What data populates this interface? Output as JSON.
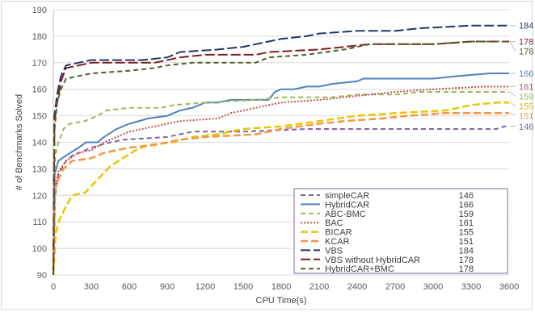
{
  "chart_data": {
    "type": "line",
    "xlabel": "CPU Time(s)",
    "ylabel": "# of Benchmarks Solved",
    "xlim": [
      0,
      3600
    ],
    "ylim": [
      90,
      190
    ],
    "xticks": [
      0,
      300,
      600,
      900,
      1200,
      1500,
      1800,
      2100,
      2400,
      2700,
      3000,
      3300,
      3600
    ],
    "yticks": [
      90,
      100,
      110,
      120,
      130,
      140,
      150,
      160,
      170,
      180,
      190
    ],
    "grid": "horizontal",
    "legend_position": "bottom-right",
    "series": [
      {
        "name": "simpleCAR",
        "final": 146,
        "color": "#8064a2",
        "dash": "6,4",
        "width": 2,
        "end_label_color": "#8064a2",
        "points": [
          [
            0,
            90
          ],
          [
            15,
            120
          ],
          [
            40,
            128
          ],
          [
            100,
            133
          ],
          [
            150,
            135
          ],
          [
            200,
            136
          ],
          [
            300,
            138
          ],
          [
            450,
            140
          ],
          [
            560,
            141
          ],
          [
            900,
            142
          ],
          [
            1100,
            144
          ],
          [
            1500,
            144
          ],
          [
            2000,
            145
          ],
          [
            2400,
            145
          ],
          [
            3000,
            145
          ],
          [
            3500,
            145
          ],
          [
            3560,
            146
          ],
          [
            3600,
            146
          ]
        ]
      },
      {
        "name": "HybridCAR",
        "final": 166,
        "color": "#4f81bd",
        "dash": "",
        "width": 2,
        "end_label_color": "#4f81bd",
        "points": [
          [
            0,
            90
          ],
          [
            10,
            128
          ],
          [
            40,
            133
          ],
          [
            100,
            135
          ],
          [
            200,
            138
          ],
          [
            260,
            140
          ],
          [
            350,
            140
          ],
          [
            400,
            142
          ],
          [
            500,
            145
          ],
          [
            600,
            147
          ],
          [
            750,
            149
          ],
          [
            900,
            150
          ],
          [
            1000,
            152
          ],
          [
            1100,
            153
          ],
          [
            1200,
            155
          ],
          [
            1300,
            155
          ],
          [
            1400,
            156
          ],
          [
            1700,
            156
          ],
          [
            1750,
            159
          ],
          [
            1800,
            160
          ],
          [
            1900,
            160
          ],
          [
            2000,
            161
          ],
          [
            2100,
            161
          ],
          [
            2200,
            162
          ],
          [
            2400,
            163
          ],
          [
            2450,
            164
          ],
          [
            2700,
            164
          ],
          [
            3000,
            164
          ],
          [
            3200,
            165
          ],
          [
            3450,
            166
          ],
          [
            3600,
            166
          ]
        ]
      },
      {
        "name": "ABC-BMC",
        "final": 159,
        "color": "#9bbb59",
        "dash": "6,4",
        "width": 2,
        "end_label_color": "#9bbb59",
        "points": [
          [
            0,
            90
          ],
          [
            15,
            135
          ],
          [
            40,
            140
          ],
          [
            80,
            145
          ],
          [
            130,
            147
          ],
          [
            250,
            148
          ],
          [
            350,
            150
          ],
          [
            420,
            152
          ],
          [
            600,
            153
          ],
          [
            850,
            153
          ],
          [
            950,
            154
          ],
          [
            1200,
            155
          ],
          [
            1600,
            156
          ],
          [
            1800,
            157
          ],
          [
            2200,
            157
          ],
          [
            2400,
            158
          ],
          [
            2700,
            158
          ],
          [
            2900,
            159
          ],
          [
            3600,
            159
          ]
        ]
      },
      {
        "name": "BAC",
        "final": 161,
        "color": "#c0504d",
        "dash": "2,2",
        "width": 2,
        "end_label_color": "#c0504d",
        "points": [
          [
            0,
            90
          ],
          [
            12,
            123
          ],
          [
            40,
            129
          ],
          [
            100,
            133
          ],
          [
            200,
            136
          ],
          [
            300,
            137
          ],
          [
            400,
            140
          ],
          [
            500,
            142
          ],
          [
            600,
            144
          ],
          [
            800,
            146
          ],
          [
            1000,
            148
          ],
          [
            1300,
            149
          ],
          [
            1400,
            151
          ],
          [
            1600,
            153
          ],
          [
            1800,
            155
          ],
          [
            2100,
            156
          ],
          [
            2300,
            157
          ],
          [
            2500,
            158
          ],
          [
            2700,
            159
          ],
          [
            3000,
            160
          ],
          [
            3400,
            161
          ],
          [
            3600,
            161
          ]
        ]
      },
      {
        "name": "BICAR",
        "final": 155,
        "color": "#e5c800",
        "dash": "9,4",
        "width": 2.5,
        "end_label_color": "#d4b800",
        "points": [
          [
            0,
            90
          ],
          [
            20,
            106
          ],
          [
            50,
            111
          ],
          [
            100,
            116
          ],
          [
            150,
            120
          ],
          [
            250,
            121
          ],
          [
            350,
            126
          ],
          [
            450,
            131
          ],
          [
            550,
            134
          ],
          [
            650,
            137
          ],
          [
            750,
            139
          ],
          [
            950,
            140
          ],
          [
            1100,
            142
          ],
          [
            1300,
            143
          ],
          [
            1500,
            145
          ],
          [
            1800,
            146
          ],
          [
            2100,
            148
          ],
          [
            2400,
            150
          ],
          [
            2700,
            151
          ],
          [
            3100,
            152
          ],
          [
            3300,
            154
          ],
          [
            3500,
            155
          ],
          [
            3600,
            155
          ]
        ]
      },
      {
        "name": "KCAR",
        "final": 151,
        "color": "#f79646",
        "dash": "9,4",
        "width": 2.5,
        "end_label_color": "#f79646",
        "points": [
          [
            0,
            90
          ],
          [
            12,
            122
          ],
          [
            40,
            126
          ],
          [
            80,
            130
          ],
          [
            150,
            133
          ],
          [
            300,
            134
          ],
          [
            400,
            136
          ],
          [
            600,
            138
          ],
          [
            800,
            139
          ],
          [
            1000,
            141
          ],
          [
            1200,
            142
          ],
          [
            1600,
            143
          ],
          [
            1800,
            145
          ],
          [
            2100,
            147
          ],
          [
            2300,
            148
          ],
          [
            2600,
            149
          ],
          [
            2800,
            150
          ],
          [
            3100,
            151
          ],
          [
            3600,
            151
          ]
        ]
      },
      {
        "name": "VBS",
        "final": 184,
        "color": "#1f3864",
        "dash": "12,4",
        "width": 2,
        "end_label_color": "#1f3864",
        "points": [
          [
            0,
            90
          ],
          [
            8,
            150
          ],
          [
            30,
            158
          ],
          [
            60,
            165
          ],
          [
            100,
            169
          ],
          [
            200,
            170
          ],
          [
            300,
            171
          ],
          [
            700,
            171
          ],
          [
            900,
            172
          ],
          [
            1000,
            174
          ],
          [
            1300,
            175
          ],
          [
            1500,
            176
          ],
          [
            1700,
            178
          ],
          [
            1800,
            179
          ],
          [
            2000,
            180
          ],
          [
            2100,
            181
          ],
          [
            2400,
            182
          ],
          [
            2700,
            182
          ],
          [
            2900,
            183
          ],
          [
            3300,
            184
          ],
          [
            3600,
            184
          ]
        ]
      },
      {
        "name": "VBS without HybridCAR",
        "final": 178,
        "color": "#7f1f1f",
        "dash": "12,4",
        "width": 2,
        "end_label_color": "#7f1f1f",
        "points": [
          [
            0,
            90
          ],
          [
            8,
            148
          ],
          [
            30,
            155
          ],
          [
            60,
            163
          ],
          [
            100,
            168
          ],
          [
            200,
            169
          ],
          [
            300,
            170
          ],
          [
            800,
            170
          ],
          [
            900,
            171
          ],
          [
            1000,
            172
          ],
          [
            1200,
            173
          ],
          [
            1600,
            173
          ],
          [
            1700,
            174
          ],
          [
            2100,
            175
          ],
          [
            2300,
            176
          ],
          [
            2500,
            177
          ],
          [
            3000,
            177
          ],
          [
            3300,
            178
          ],
          [
            3600,
            178
          ]
        ]
      },
      {
        "name": "HybridCAR+BMC",
        "final": 178,
        "color": "#4f6228",
        "dash": "6,4",
        "width": 2,
        "end_label_color": "#4f6228",
        "points": [
          [
            0,
            90
          ],
          [
            10,
            145
          ],
          [
            30,
            155
          ],
          [
            60,
            160
          ],
          [
            100,
            164
          ],
          [
            200,
            165
          ],
          [
            300,
            166
          ],
          [
            600,
            167
          ],
          [
            800,
            168
          ],
          [
            900,
            169
          ],
          [
            1100,
            170
          ],
          [
            1600,
            170
          ],
          [
            1700,
            172
          ],
          [
            2000,
            173
          ],
          [
            2300,
            175
          ],
          [
            2500,
            177
          ],
          [
            3000,
            177
          ],
          [
            3300,
            178
          ],
          [
            3600,
            178
          ]
        ]
      }
    ]
  }
}
